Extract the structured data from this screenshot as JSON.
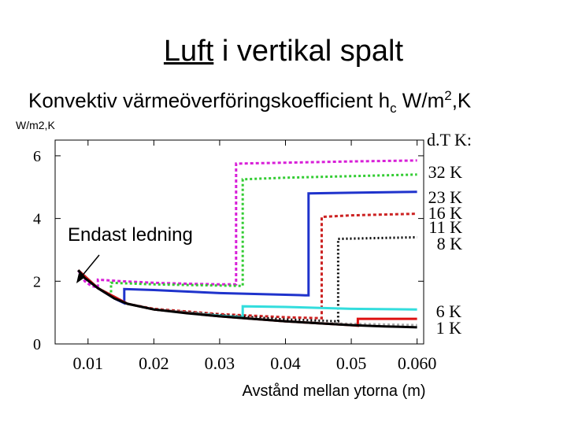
{
  "slide": {
    "title_part1": "Luft",
    "title_part2": " i vertikal spalt",
    "subtitle_main": "Konvektiv värmeöverföringskoefficient h",
    "subtitle_sub": "c",
    "subtitle_unit": " W/m",
    "subtitle_sup": "2",
    "subtitle_end": ",K"
  },
  "chart_data": {
    "type": "line",
    "ylabel": "W/m2,K",
    "xlabel": "Avstånd mellan ytorna (m)",
    "xlim": [
      0.005,
      0.061
    ],
    "ylim": [
      0,
      6.5
    ],
    "xticks": [
      "0.01",
      "0.02",
      "0.03",
      "0.04",
      "0.05",
      "0.060"
    ],
    "xtick_values": [
      0.01,
      0.02,
      0.03,
      0.04,
      0.05,
      0.06
    ],
    "yticks": [
      "0",
      "2",
      "4",
      "6"
    ],
    "ytick_values": [
      0,
      2,
      4,
      6
    ],
    "legend_title": "d.T K:",
    "annotation": "Endast ledning",
    "series": [
      {
        "name": "32 K",
        "color": "#d81fd8",
        "dash": "4,3",
        "points": [
          [
            0.0085,
            2.35
          ],
          [
            0.0095,
            2.0
          ],
          [
            0.0105,
            1.85
          ],
          [
            0.0115,
            1.8
          ],
          [
            0.0115,
            2.05
          ],
          [
            0.015,
            2.0
          ],
          [
            0.02,
            1.95
          ],
          [
            0.025,
            1.92
          ],
          [
            0.03,
            1.9
          ],
          [
            0.0325,
            1.9
          ],
          [
            0.0325,
            5.75
          ],
          [
            0.04,
            5.78
          ],
          [
            0.05,
            5.82
          ],
          [
            0.06,
            5.85
          ]
        ]
      },
      {
        "name": "23 K",
        "color": "#33cc33",
        "dash": "3,3",
        "points": [
          [
            0.0085,
            2.35
          ],
          [
            0.0115,
            1.78
          ],
          [
            0.013,
            1.6
          ],
          [
            0.0135,
            1.6
          ],
          [
            0.0135,
            1.95
          ],
          [
            0.02,
            1.9
          ],
          [
            0.025,
            1.88
          ],
          [
            0.0335,
            1.85
          ],
          [
            0.0335,
            5.25
          ],
          [
            0.04,
            5.3
          ],
          [
            0.05,
            5.35
          ],
          [
            0.06,
            5.4
          ]
        ]
      },
      {
        "name": "16 K",
        "color": "#1f33cc",
        "dash": "",
        "points": [
          [
            0.0085,
            2.35
          ],
          [
            0.0115,
            1.78
          ],
          [
            0.014,
            1.45
          ],
          [
            0.0155,
            1.3
          ],
          [
            0.0155,
            1.75
          ],
          [
            0.02,
            1.72
          ],
          [
            0.03,
            1.62
          ],
          [
            0.043,
            1.55
          ],
          [
            0.0435,
            1.55
          ],
          [
            0.0435,
            4.8
          ],
          [
            0.05,
            4.82
          ],
          [
            0.06,
            4.85
          ]
        ]
      },
      {
        "name": "11 K",
        "color": "#cc2222",
        "dash": "4,3",
        "points": [
          [
            0.0085,
            2.35
          ],
          [
            0.0115,
            1.78
          ],
          [
            0.016,
            1.28
          ],
          [
            0.02,
            1.12
          ],
          [
            0.03,
            0.95
          ],
          [
            0.04,
            0.85
          ],
          [
            0.0455,
            0.82
          ],
          [
            0.0455,
            4.05
          ],
          [
            0.05,
            4.1
          ],
          [
            0.06,
            4.15
          ]
        ]
      },
      {
        "name": "8 K",
        "color": "#000000",
        "dash": "2,3",
        "points": [
          [
            0.0085,
            2.35
          ],
          [
            0.0115,
            1.78
          ],
          [
            0.016,
            1.28
          ],
          [
            0.02,
            1.1
          ],
          [
            0.03,
            0.92
          ],
          [
            0.04,
            0.78
          ],
          [
            0.048,
            0.72
          ],
          [
            0.048,
            3.35
          ],
          [
            0.055,
            3.38
          ],
          [
            0.06,
            3.4
          ]
        ]
      },
      {
        "name": "6 K",
        "color": "#aaaaaa",
        "dash": "3,3",
        "points": [
          [
            0.0085,
            2.35
          ],
          [
            0.0115,
            1.78
          ],
          [
            0.016,
            1.28
          ],
          [
            0.02,
            1.1
          ],
          [
            0.03,
            0.9
          ],
          [
            0.04,
            0.72
          ],
          [
            0.05,
            0.64
          ],
          [
            0.06,
            0.6
          ]
        ]
      },
      {
        "name": "1 K",
        "color": "#33dddd",
        "dash": "",
        "points": [
          [
            0.0085,
            2.35
          ],
          [
            0.0115,
            1.78
          ],
          [
            0.016,
            1.28
          ],
          [
            0.02,
            1.1
          ],
          [
            0.03,
            0.9
          ],
          [
            0.0335,
            0.85
          ],
          [
            0.0335,
            1.2
          ],
          [
            0.04,
            1.18
          ],
          [
            0.05,
            1.12
          ],
          [
            0.06,
            1.1
          ]
        ]
      },
      {
        "name": "",
        "color": "#dd1111",
        "dash": "",
        "points": [
          [
            0.0085,
            2.35
          ],
          [
            0.0115,
            1.78
          ],
          [
            0.016,
            1.28
          ],
          [
            0.02,
            1.1
          ],
          [
            0.03,
            0.88
          ],
          [
            0.04,
            0.72
          ],
          [
            0.05,
            0.6
          ],
          [
            0.051,
            0.58
          ],
          [
            0.051,
            0.8
          ],
          [
            0.06,
            0.8
          ]
        ]
      },
      {
        "name": "",
        "color": "#000000",
        "dash": "",
        "points": [
          [
            0.0085,
            2.35
          ],
          [
            0.0095,
            2.1
          ],
          [
            0.0115,
            1.78
          ],
          [
            0.014,
            1.45
          ],
          [
            0.016,
            1.28
          ],
          [
            0.02,
            1.1
          ],
          [
            0.025,
            0.98
          ],
          [
            0.03,
            0.88
          ],
          [
            0.035,
            0.8
          ],
          [
            0.04,
            0.72
          ],
          [
            0.045,
            0.66
          ],
          [
            0.05,
            0.6
          ],
          [
            0.055,
            0.56
          ],
          [
            0.06,
            0.53
          ]
        ]
      }
    ],
    "legend_upper": [
      "32 K",
      "23 K",
      "16 K",
      "11 K",
      "8 K"
    ],
    "legend_lower": [
      "6 K",
      "1 K"
    ]
  }
}
